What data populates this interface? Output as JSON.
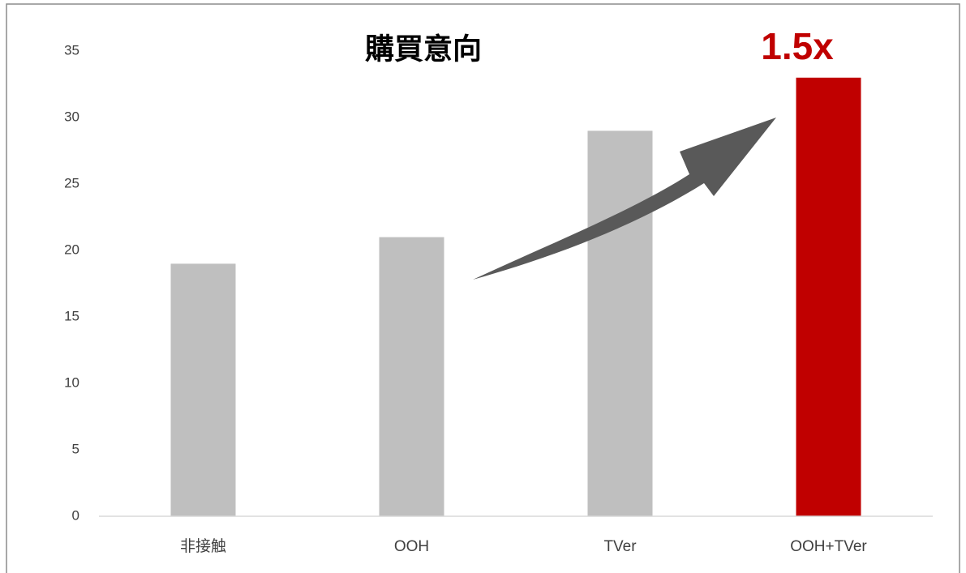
{
  "chart_data": {
    "type": "bar",
    "title": "購買意向",
    "annotation": "1.5x",
    "categories": [
      "非接触",
      "OOH",
      "TVer",
      "OOH+TVer"
    ],
    "values": [
      19,
      21,
      29,
      33
    ],
    "colors": [
      "#bfbfbf",
      "#bfbfbf",
      "#bfbfbf",
      "#c00000"
    ],
    "ylim": [
      0,
      35
    ],
    "yticks": [
      0,
      5,
      10,
      15,
      20,
      25,
      30,
      35
    ],
    "grid": false
  }
}
